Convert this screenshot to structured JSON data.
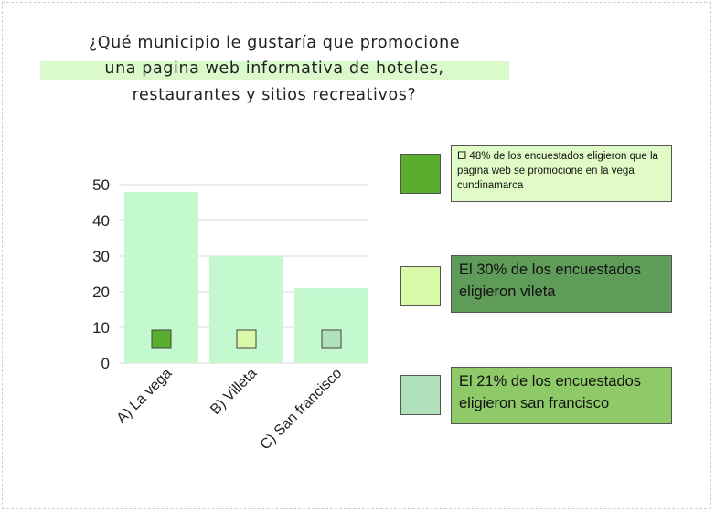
{
  "title": {
    "line1": "¿Qué municipio le gustaría que promocione",
    "line2": "una pagina web informativa de hoteles,",
    "line3": "restaurantes y sitios recreativos?"
  },
  "colors": {
    "bar": "#c4f8cf",
    "la_vega": "#5aae2f",
    "villeta": "#d8f9a7",
    "san_francisco": "#b1e1bb",
    "note1_bg": "#e1fbc6",
    "note2_bg": "#5f9b59",
    "note3_bg": "#8fca69"
  },
  "chart_data": {
    "type": "bar",
    "categories": [
      "A) La vega",
      "B) Villeta",
      "C) San francisco"
    ],
    "values": [
      48,
      30,
      21
    ],
    "ylim": [
      0,
      50
    ],
    "yticks": [
      0,
      10,
      20,
      30,
      40,
      50
    ],
    "grid": true,
    "legend_position": "right",
    "xlabel": "",
    "ylabel": ""
  },
  "legend": [
    {
      "text": "El 48% de los encuestados eligieron que la pagina web se promocione en la vega cundinamarca",
      "swatch_icon": "square-swatch-icon"
    },
    {
      "text": "El 30% de los encuestados eligieron vileta",
      "swatch_icon": "square-swatch-icon"
    },
    {
      "text": "El 21% de los encuestados eligieron san francisco",
      "swatch_icon": "square-swatch-icon"
    }
  ]
}
